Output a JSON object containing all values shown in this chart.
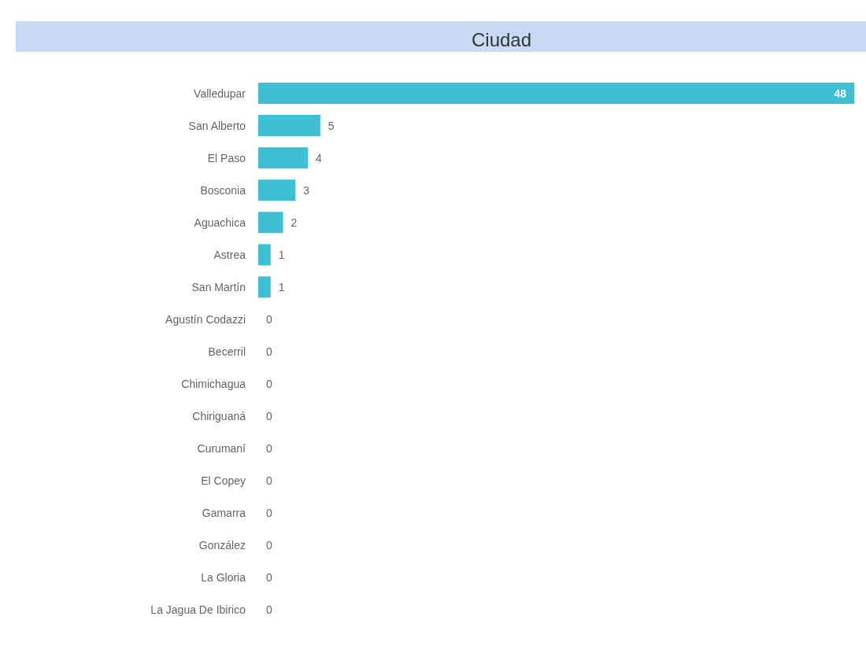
{
  "chart_data": {
    "type": "bar",
    "orientation": "horizontal",
    "title": "Ciudad",
    "categories": [
      "Valledupar",
      "San Alberto",
      "El Paso",
      "Bosconia",
      "Aguachica",
      "Astrea",
      "San Martín",
      "Agustín Codazzi",
      "Becerril",
      "Chimichagua",
      "Chiriguaná",
      "Curumaní",
      "El Copey",
      "Gamarra",
      "González",
      "La Gloria",
      "La Jagua De Ibirico"
    ],
    "values": [
      48,
      5,
      4,
      3,
      2,
      1,
      1,
      0,
      0,
      0,
      0,
      0,
      0,
      0,
      0,
      0,
      0
    ],
    "color": "#3fbfd4",
    "data_labels": true
  }
}
